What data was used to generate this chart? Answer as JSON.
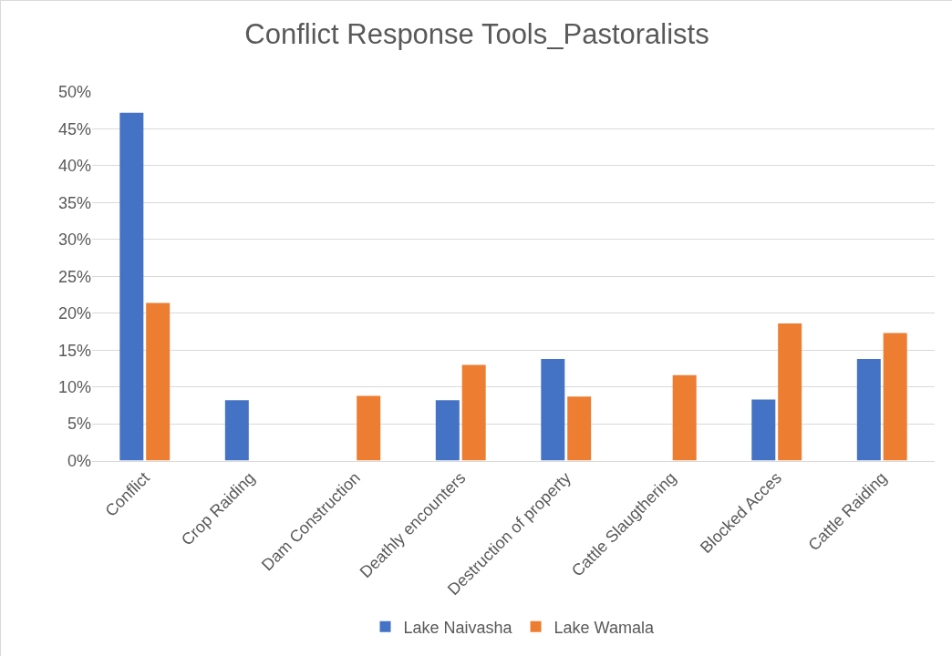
{
  "chart_data": {
    "type": "bar",
    "title": "Conflict Response Tools_Pastoralists",
    "categories": [
      "Conflict",
      "Crop Raiding",
      "Dam Construction",
      "Deathly encounters",
      "Destruction of property",
      "Cattle Slaugthering",
      "Blocked Acces",
      "Cattle Raiding"
    ],
    "series": [
      {
        "name": "Lake Naivasha",
        "color": "#4472c4",
        "values": [
          47.2,
          8.2,
          0,
          8.2,
          13.8,
          0,
          8.3,
          13.8
        ]
      },
      {
        "name": "Lake Wamala",
        "color": "#ed7d31",
        "values": [
          21.4,
          0,
          8.8,
          13.0,
          8.7,
          11.6,
          18.6,
          17.3
        ]
      }
    ],
    "ylim": [
      0,
      50
    ],
    "yticks": [
      {
        "value": 0,
        "label": "0%"
      },
      {
        "value": 5,
        "label": "5%"
      },
      {
        "value": 10,
        "label": "10%"
      },
      {
        "value": 15,
        "label": "15%"
      },
      {
        "value": 20,
        "label": "20%"
      },
      {
        "value": 25,
        "label": "25%"
      },
      {
        "value": 30,
        "label": "30%"
      },
      {
        "value": 35,
        "label": "35%"
      },
      {
        "value": 40,
        "label": "40%"
      },
      {
        "value": 45,
        "label": "45%"
      },
      {
        "value": 50,
        "label": "50%"
      }
    ],
    "grid": "y",
    "legend": "bottom"
  }
}
